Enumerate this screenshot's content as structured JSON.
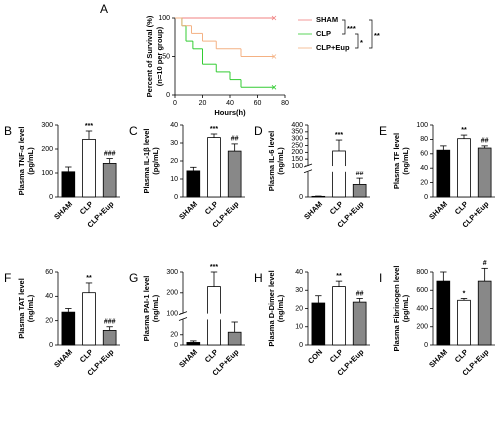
{
  "chart_data": [
    {
      "type": "step",
      "panel": "A",
      "ylabel": [
        "Percent of Survival (%)",
        "(n=10 per group)"
      ],
      "xlabel": "Hours(h)",
      "xlim": [
        0,
        80
      ],
      "xticks": [
        0,
        20,
        40,
        60,
        80
      ],
      "ylim": [
        0,
        100
      ],
      "yticks": [
        0,
        50,
        100
      ],
      "series": [
        {
          "name": "SHAM",
          "color": "#f08080",
          "x": [
            0,
            72
          ],
          "values": [
            100,
            100
          ]
        },
        {
          "name": "CLP",
          "color": "#33cc33",
          "x": [
            0,
            5,
            8,
            13,
            20,
            30,
            40,
            48,
            72
          ],
          "values": [
            100,
            90,
            70,
            60,
            40,
            30,
            20,
            10,
            10
          ]
        },
        {
          "name": "CLP+Eup",
          "color": "#f4b183",
          "x": [
            0,
            5,
            12,
            20,
            30,
            48,
            72
          ],
          "values": [
            100,
            90,
            80,
            70,
            60,
            50,
            50
          ]
        }
      ],
      "annotations": [
        "***",
        "*",
        "**"
      ]
    },
    {
      "type": "bar",
      "panel": "B",
      "ylabel": [
        "Plasma TNF-α level",
        "(pg/mL)"
      ],
      "categories": [
        "SHAM",
        "CLP",
        "CLP+Eup"
      ],
      "values": [
        105,
        240,
        140
      ],
      "errors": [
        20,
        35,
        20
      ],
      "colors": [
        "#000000",
        "#ffffff",
        "#888888"
      ],
      "ylim": [
        0,
        300
      ],
      "yticks": [
        0,
        100,
        200,
        300
      ],
      "significance": [
        null,
        "***",
        "###"
      ]
    },
    {
      "type": "bar",
      "panel": "C",
      "ylabel": [
        "Plasma IL-1β level",
        "(pg/mL)"
      ],
      "categories": [
        "SHAM",
        "CLP",
        "CLP+Eup"
      ],
      "values": [
        14.5,
        33,
        25.5
      ],
      "errors": [
        2,
        2,
        4
      ],
      "colors": [
        "#000000",
        "#ffffff",
        "#888888"
      ],
      "ylim": [
        0,
        40
      ],
      "yticks": [
        0,
        10,
        20,
        30,
        40
      ],
      "significance": [
        null,
        "***",
        "##"
      ]
    },
    {
      "type": "bar",
      "panel": "D",
      "ylabel": [
        "Plasma IL-6 level",
        "(ng/mL)"
      ],
      "categories": [
        "SHAM",
        "CLP",
        "CLP+Eup"
      ],
      "values": [
        2,
        210,
        40
      ],
      "errors": [
        1,
        80,
        20
      ],
      "colors": [
        "#000000",
        "#ffffff",
        "#888888"
      ],
      "ylim": [
        0,
        400
      ],
      "yticks": [
        0,
        100,
        150,
        200,
        250,
        300,
        350,
        400
      ],
      "ybreak": [
        80,
        100
      ],
      "significance": [
        null,
        "***",
        "##"
      ]
    },
    {
      "type": "bar",
      "panel": "E",
      "ylabel": [
        "Plasma TF level",
        "(ng/mL)"
      ],
      "categories": [
        "SHAM",
        "CLP",
        "CLP+Eup"
      ],
      "values": [
        65,
        81,
        68
      ],
      "errors": [
        6,
        5,
        3
      ],
      "colors": [
        "#000000",
        "#ffffff",
        "#888888"
      ],
      "ylim": [
        0,
        100
      ],
      "yticks": [
        0,
        20,
        40,
        60,
        80,
        100
      ],
      "significance": [
        null,
        "**",
        "##"
      ]
    },
    {
      "type": "bar",
      "panel": "F",
      "ylabel": [
        "Plasma TAT level",
        "(ng/mL)"
      ],
      "categories": [
        "SHAM",
        "CLP",
        "CLP+Eup"
      ],
      "values": [
        27,
        43,
        12
      ],
      "errors": [
        3,
        8,
        3
      ],
      "colors": [
        "#000000",
        "#ffffff",
        "#888888"
      ],
      "ylim": [
        0,
        60
      ],
      "yticks": [
        0,
        20,
        40,
        60
      ],
      "significance": [
        null,
        "**",
        "###"
      ]
    },
    {
      "type": "bar",
      "panel": "G",
      "ylabel": [
        "Plasma PAI-1 level",
        "(ng/mL)"
      ],
      "categories": [
        "SHAM",
        "CLP",
        "CLP+Eup"
      ],
      "values": [
        5,
        230,
        25
      ],
      "errors": [
        3,
        70,
        20
      ],
      "colors": [
        "#000000",
        "#ffffff",
        "#888888"
      ],
      "ylim": [
        0,
        300
      ],
      "yticks": [
        0,
        20,
        100,
        200,
        300
      ],
      "ybreak": [
        50,
        100
      ],
      "significance": [
        null,
        "***",
        "###"
      ]
    },
    {
      "type": "bar",
      "panel": "H",
      "ylabel": [
        "Plasma D-Dimer level",
        "(ng/mL)"
      ],
      "categories": [
        "CON",
        "CLP",
        "CLP+Eup"
      ],
      "values": [
        23,
        32,
        23.5
      ],
      "errors": [
        4,
        3,
        2
      ],
      "colors": [
        "#000000",
        "#ffffff",
        "#888888"
      ],
      "ylim": [
        0,
        40
      ],
      "yticks": [
        0,
        10,
        20,
        30,
        40
      ],
      "significance": [
        null,
        "**",
        "##"
      ]
    },
    {
      "type": "bar",
      "panel": "I",
      "ylabel": [
        "Plasma Fibrinogen level",
        "(pg/mL)"
      ],
      "categories": [
        "SHAM",
        "CLP",
        "CLP+Eup"
      ],
      "values": [
        700,
        490,
        700
      ],
      "errors": [
        100,
        20,
        140
      ],
      "colors": [
        "#000000",
        "#ffffff",
        "#888888"
      ],
      "ylim": [
        0,
        800
      ],
      "yticks": [
        0,
        200,
        400,
        600,
        800
      ],
      "significance": [
        null,
        "*",
        "#"
      ]
    }
  ]
}
